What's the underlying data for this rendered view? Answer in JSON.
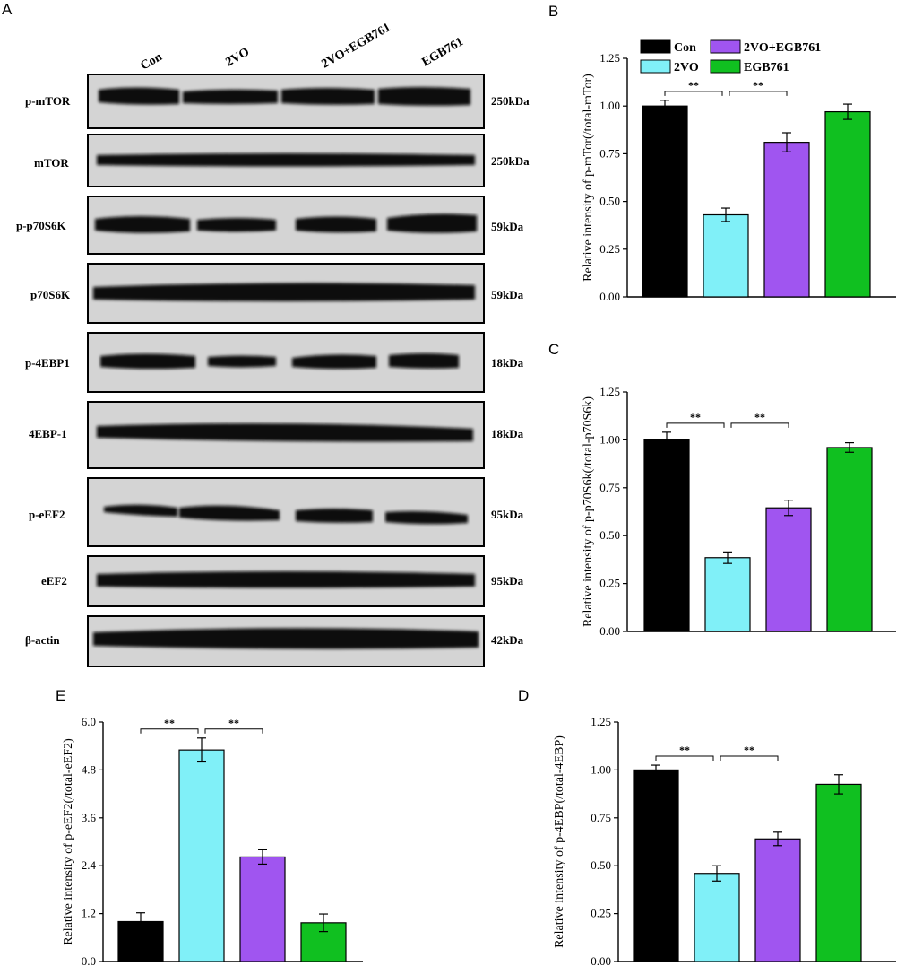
{
  "colors": {
    "Con": "#000000",
    "2VO": "#80f0f8",
    "2VO+EGB761": "#a055f0",
    "EGB761": "#10c020",
    "blot_bg": "#d4d4d4",
    "band": "#101010"
  },
  "blot": {
    "panel_label": "A",
    "lanes": [
      "Con",
      "2VO",
      "2VO+EGB761",
      "EGB761"
    ],
    "rows": [
      {
        "protein": "p-mTOR",
        "kda": "250kDa"
      },
      {
        "protein": "mTOR",
        "kda": "250kDa"
      },
      {
        "protein": "p-p70S6K",
        "kda": "59kDa"
      },
      {
        "protein": "p70S6K",
        "kda": "59kDa"
      },
      {
        "protein": "p-4EBP1",
        "kda": "18kDa"
      },
      {
        "protein": "4EBP-1",
        "kda": "18kDa"
      },
      {
        "protein": "p-eEF2",
        "kda": "95kDa"
      },
      {
        "protein": "eEF2",
        "kda": "95kDa"
      },
      {
        "protein": "β-actin",
        "kda": "42kDa"
      }
    ]
  },
  "legend": {
    "entries": [
      "Con",
      "2VO",
      "2VO+EGB761",
      "EGB761"
    ]
  },
  "chart_data": [
    {
      "id": "B",
      "panel_label": "B",
      "type": "bar",
      "categories": [
        "Con",
        "2VO",
        "2VO+EGB761",
        "EGB761"
      ],
      "values": [
        1.0,
        0.43,
        0.81,
        0.97
      ],
      "errors": [
        0.03,
        0.035,
        0.05,
        0.04
      ],
      "ylim": [
        0,
        1.25
      ],
      "yticks": [
        "0.00",
        "0.25",
        "0.50",
        "0.75",
        "1.00",
        "1.25"
      ],
      "ylabel": "Relative intensity of p-mTor(/total-mTor)",
      "xlabel": "",
      "significance": [
        {
          "from": 0,
          "to": 1,
          "label": "**"
        },
        {
          "from": 1,
          "to": 2,
          "label": "**"
        }
      ]
    },
    {
      "id": "C",
      "panel_label": "C",
      "type": "bar",
      "categories": [
        "Con",
        "2VO",
        "2VO+EGB761",
        "EGB761"
      ],
      "values": [
        1.0,
        0.385,
        0.645,
        0.96
      ],
      "errors": [
        0.04,
        0.03,
        0.04,
        0.025
      ],
      "ylim": [
        0,
        1.25
      ],
      "yticks": [
        "0.00",
        "0.25",
        "0.50",
        "0.75",
        "1.00",
        "1.25"
      ],
      "ylabel": "Relative intensity of p-p70S6k(/total-p70S6k)",
      "xlabel": "",
      "significance": [
        {
          "from": 0,
          "to": 1,
          "label": "**"
        },
        {
          "from": 1,
          "to": 2,
          "label": "**"
        }
      ]
    },
    {
      "id": "E",
      "panel_label": "E",
      "type": "bar",
      "categories": [
        "Con",
        "2VO",
        "2VO+EGB761",
        "EGB761"
      ],
      "values": [
        1.0,
        5.3,
        2.62,
        0.97
      ],
      "errors": [
        0.22,
        0.3,
        0.18,
        0.22
      ],
      "ylim": [
        0,
        6.0
      ],
      "yticks": [
        "0.0",
        "1.2",
        "2.4",
        "3.6",
        "4.8",
        "6.0"
      ],
      "ylabel": "Relative intensity of p-eEF2(/total-eEF2)",
      "xlabel": "",
      "significance": [
        {
          "from": 0,
          "to": 1,
          "label": "**"
        },
        {
          "from": 1,
          "to": 2,
          "label": "**"
        }
      ]
    },
    {
      "id": "D",
      "panel_label": "D",
      "type": "bar",
      "categories": [
        "Con",
        "2VO",
        "2VO+EGB761",
        "EGB761"
      ],
      "values": [
        1.0,
        0.46,
        0.64,
        0.925
      ],
      "errors": [
        0.025,
        0.04,
        0.035,
        0.05
      ],
      "ylim": [
        0,
        1.25
      ],
      "yticks": [
        "0.00",
        "0.25",
        "0.50",
        "0.75",
        "1.00",
        "1.25"
      ],
      "ylabel": "Relative intensity of p-4EBP(/total-4EBP)",
      "xlabel": "",
      "significance": [
        {
          "from": 0,
          "to": 1,
          "label": "**"
        },
        {
          "from": 1,
          "to": 2,
          "label": "**"
        }
      ]
    }
  ]
}
